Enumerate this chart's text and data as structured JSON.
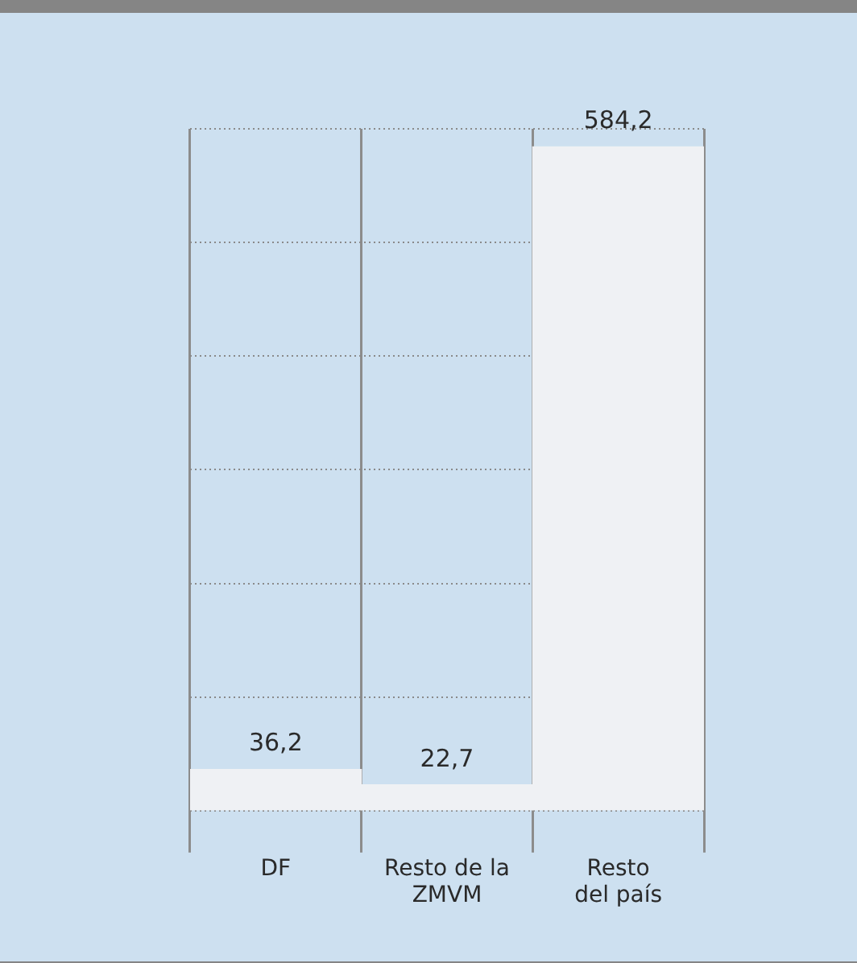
{
  "chart_data": {
    "type": "bar",
    "categories": [
      "DF",
      "Resto de la\nZMVM",
      "Resto\ndel país"
    ],
    "values": [
      36.2,
      22.7,
      584.2
    ],
    "value_labels": [
      "36,2",
      "22,7",
      "584,2"
    ],
    "color": "#eff1f4",
    "ylim": [
      0,
      600
    ],
    "yticks": [
      {
        "value": 0,
        "label": null
      },
      {
        "value": 100,
        "label": null
      },
      {
        "value": 200,
        "label": null
      },
      {
        "value": 300,
        "label": null
      },
      {
        "value": 400,
        "label": null
      },
      {
        "value": 500,
        "label": null
      },
      {
        "value": 600,
        "label": null
      }
    ],
    "tick_labels": "x",
    "grid": true,
    "legend": false
  }
}
